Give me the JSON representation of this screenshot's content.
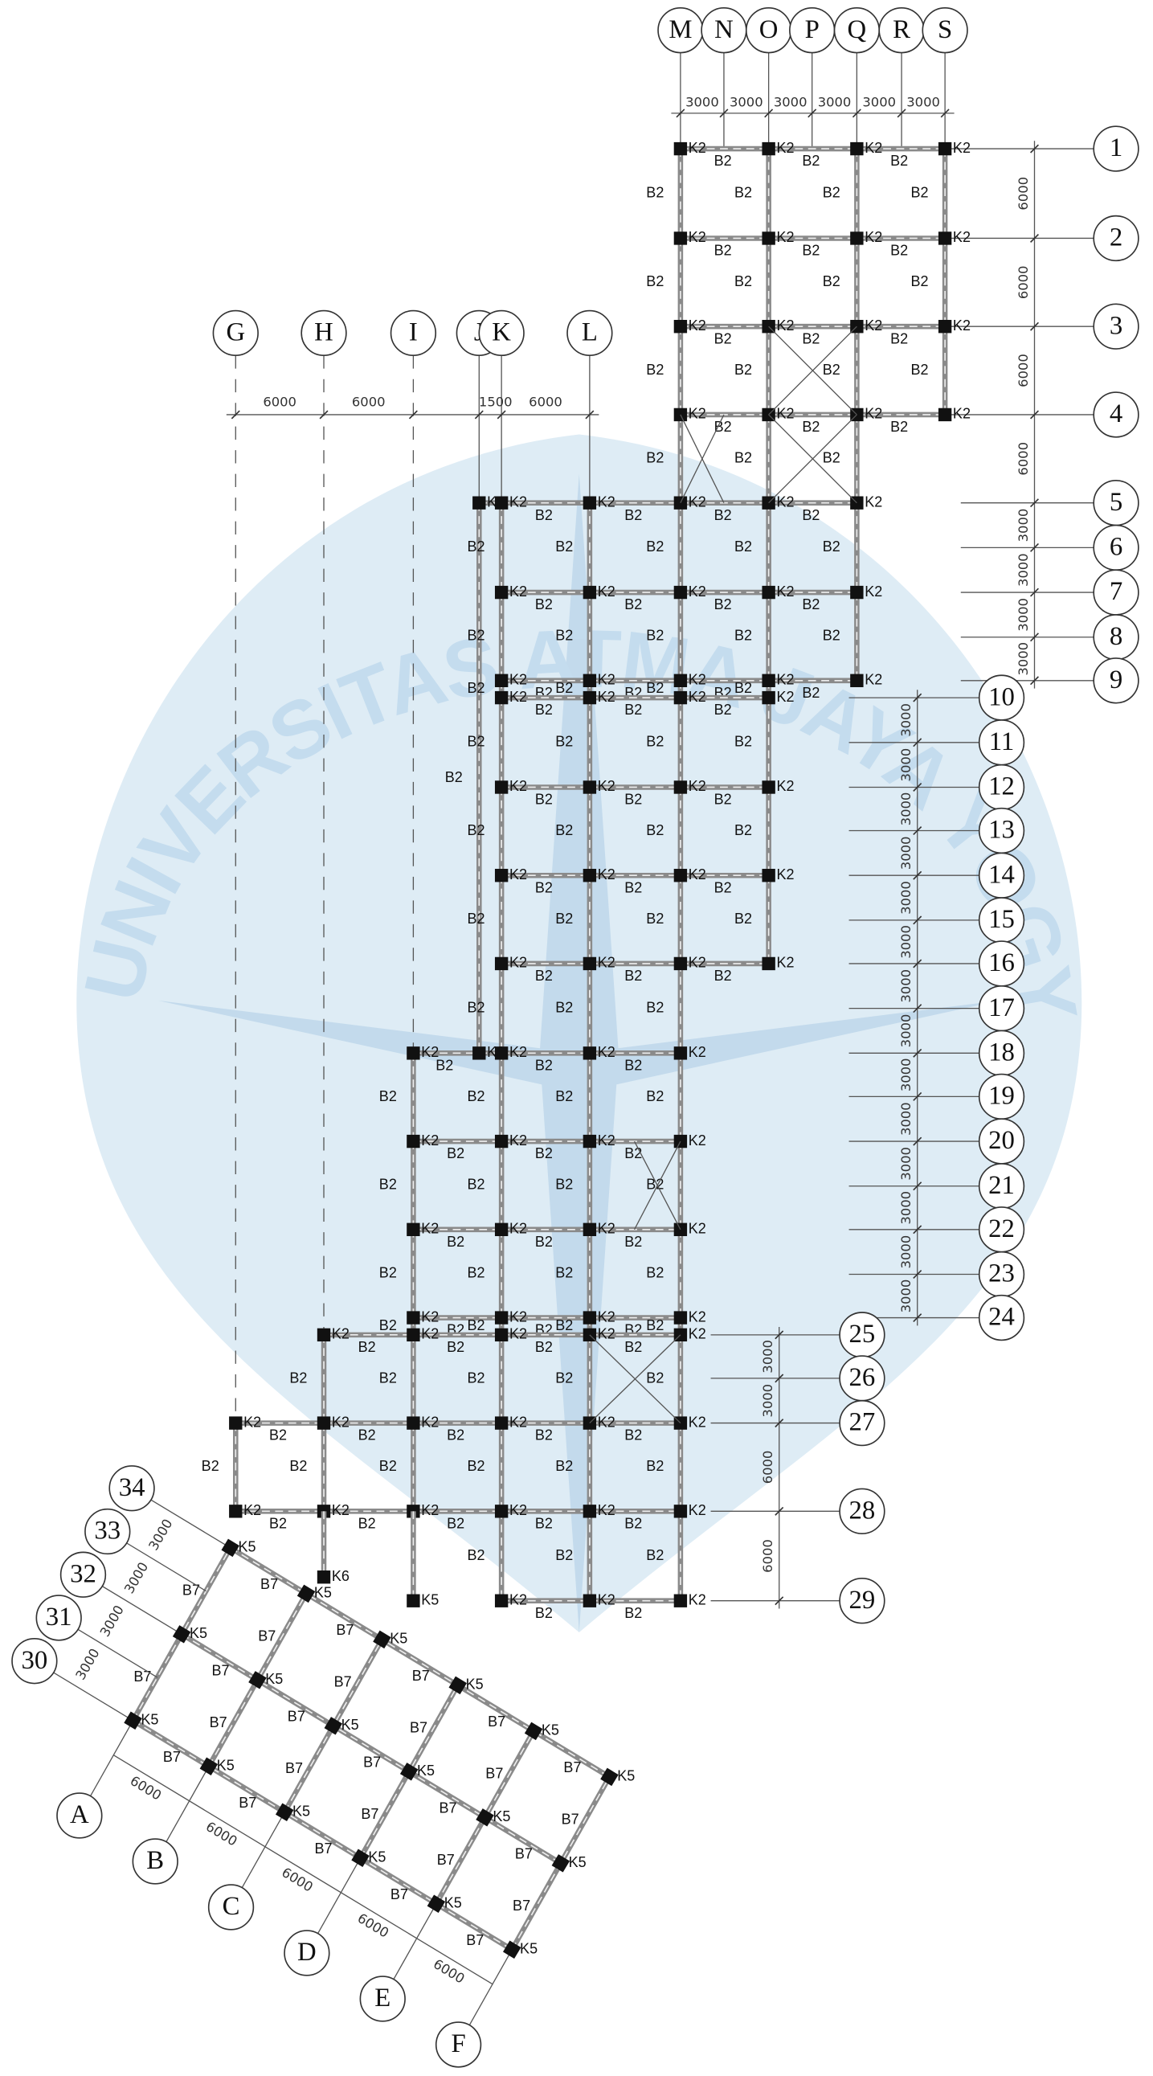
{
  "watermark": "UNIVERSITAS ATMA JAYA YOGYAKARTA",
  "grid_columns": [
    "M",
    "N",
    "O",
    "P",
    "Q",
    "R",
    "S",
    "G",
    "H",
    "I",
    "J",
    "K",
    "L",
    "A",
    "B",
    "C",
    "D",
    "E",
    "F"
  ],
  "grid_rows": [
    "1",
    "2",
    "3",
    "4",
    "5",
    "6",
    "7",
    "8",
    "9",
    "10",
    "11",
    "12",
    "13",
    "14",
    "15",
    "16",
    "17",
    "18",
    "19",
    "20",
    "21",
    "22",
    "23",
    "24",
    "25",
    "26",
    "27",
    "28",
    "29",
    "30",
    "31",
    "32",
    "33",
    "34"
  ],
  "dimensions": {
    "top": [
      "3000",
      "3000",
      "3000",
      "3000",
      "3000",
      "3000"
    ],
    "left_block": [
      "6000",
      "6000",
      "1500",
      "6000"
    ],
    "rows_1_9": [
      "6000",
      "6000",
      "6000",
      "6000",
      "3000",
      "3000",
      "3000",
      "3000"
    ],
    "rows_10_24": [
      "3000",
      "3000",
      "3000",
      "3000",
      "3000",
      "3000",
      "3000",
      "3000",
      "3000",
      "3000",
      "3000",
      "3000",
      "3000",
      "3000"
    ],
    "rows_25_29": [
      "3000",
      "3000",
      "6000",
      "6000"
    ],
    "skew_columns": [
      "6000",
      "6000",
      "6000",
      "6000",
      "6000"
    ],
    "skew_rows": [
      "3000",
      "3000",
      "3000",
      "3000"
    ]
  },
  "member_tags": {
    "column_main": "K2",
    "beam_main": "B2",
    "column_skew": "K5",
    "beam_skew": "B7",
    "column_special": "K6"
  }
}
